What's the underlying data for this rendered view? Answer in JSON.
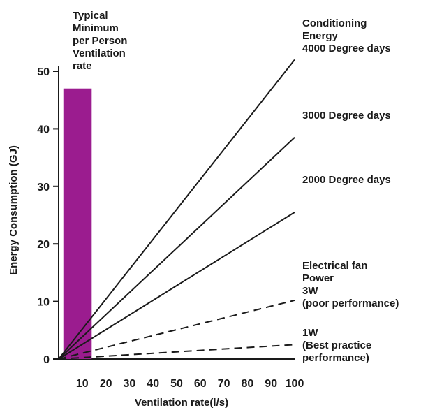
{
  "chart_data": {
    "type": "line",
    "title": "",
    "xlabel": "Ventilation rate(l/s)",
    "ylabel": "Energy Consumption (GJ)",
    "xlim": [
      0,
      100
    ],
    "ylim": [
      0,
      50
    ],
    "x_ticks": [
      "10",
      "20",
      "30",
      "40",
      "50",
      "60",
      "70",
      "80",
      "90",
      "100"
    ],
    "y_ticks": [
      "0",
      "10",
      "20",
      "30",
      "40",
      "50"
    ],
    "grid": false,
    "bar": {
      "label_lines": [
        "Typical",
        "Minimum",
        "per Person",
        "Ventilation",
        "rate"
      ],
      "x_start": 2,
      "x_end": 14,
      "value": 47,
      "color": "#9b1c8f"
    },
    "series": [
      {
        "label_lines": [
          "Conditioning",
          "Energy",
          "4000 Degree days"
        ],
        "style": "solid",
        "x": [
          0,
          100
        ],
        "y": [
          0,
          52
        ]
      },
      {
        "label_lines": [
          "3000 Degree days"
        ],
        "style": "solid",
        "x": [
          0,
          100
        ],
        "y": [
          0,
          38.5
        ]
      },
      {
        "label_lines": [
          "2000 Degree days"
        ],
        "style": "solid",
        "x": [
          0,
          100
        ],
        "y": [
          0,
          25.5
        ]
      },
      {
        "label_lines": [
          "Electrical fan",
          "Power",
          "3W",
          "(poor performance)"
        ],
        "style": "dashed",
        "x": [
          0,
          100
        ],
        "y": [
          0,
          10.2
        ]
      },
      {
        "label_lines": [
          "1W",
          "(Best practice",
          "performance)"
        ],
        "style": "dashed",
        "x": [
          0,
          100
        ],
        "y": [
          0,
          2.5
        ]
      }
    ]
  }
}
